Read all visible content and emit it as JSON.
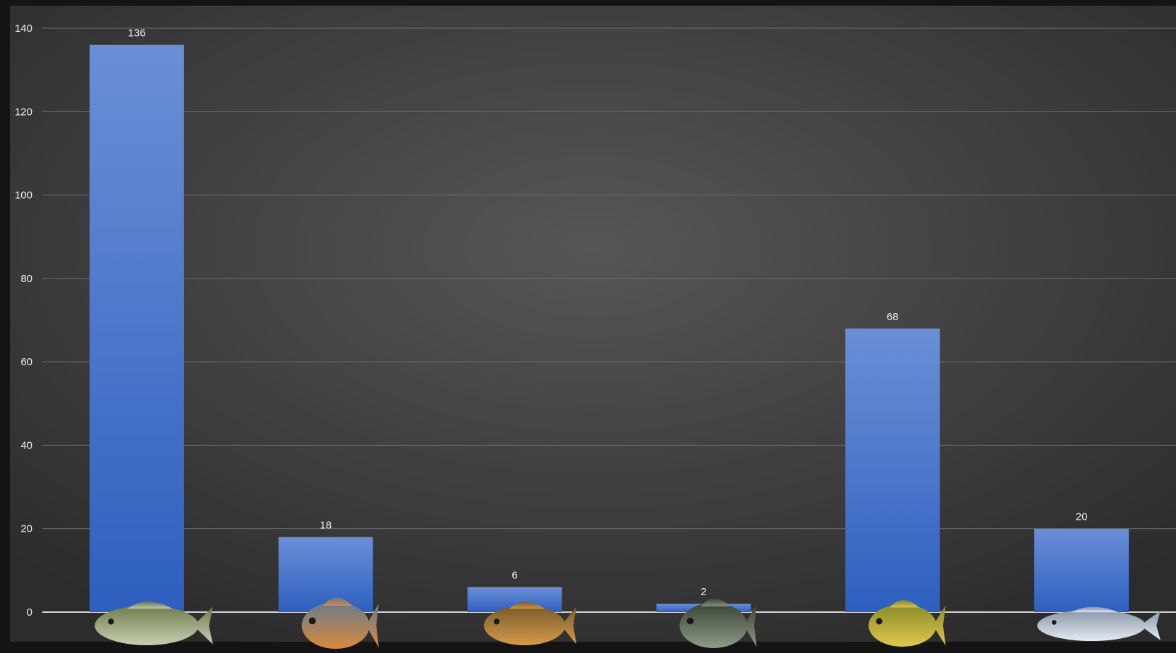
{
  "chart_data": {
    "type": "bar",
    "title": "",
    "xlabel": "",
    "ylabel": "",
    "categories": [
      "",
      "",
      "",
      "",
      "",
      ""
    ],
    "category_icons": [
      "largemouth-bass-icon",
      "bluegill-icon",
      "pumpkinseed-icon",
      "green-sunfish-icon",
      "crappie-icon",
      "striped-bass-icon"
    ],
    "values": [
      136,
      18,
      6,
      2,
      68,
      20
    ],
    "ylim": [
      0,
      140
    ],
    "yticks": [
      0,
      20,
      40,
      60,
      80,
      100,
      120,
      140
    ],
    "grid": true,
    "legend": "none",
    "colors": {
      "bar_top": "#6a8fd6",
      "bar_bottom": "#2e5fbf",
      "background_center": "#565656",
      "background_edge": "#2a2a2a",
      "gridline": "#6e6e6e",
      "baseline": "#d8d8d8",
      "text": "#f0f0f0"
    }
  }
}
